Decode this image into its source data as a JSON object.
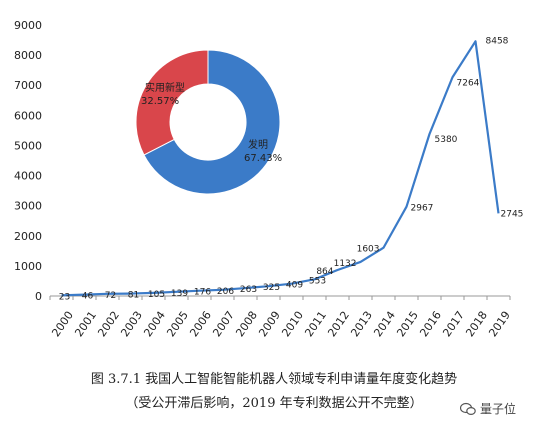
{
  "chart_data": {
    "type": "line",
    "categories": [
      "2000",
      "2001",
      "2002",
      "2003",
      "2004",
      "2005",
      "2006",
      "2007",
      "2008",
      "2009",
      "2010",
      "2011",
      "2012",
      "2013",
      "2014",
      "2015",
      "2016",
      "2017",
      "2018",
      "2019"
    ],
    "values": [
      23,
      46,
      72,
      81,
      105,
      139,
      176,
      206,
      263,
      325,
      409,
      553,
      864,
      1132,
      1603,
      2967,
      5380,
      7264,
      8458,
      2745
    ],
    "ylim": [
      0,
      9000
    ],
    "yticks": [
      0,
      1000,
      2000,
      3000,
      4000,
      5000,
      6000,
      7000,
      8000,
      9000
    ],
    "line_color": "#3b7bc8",
    "grid": false,
    "inset_pie": {
      "type": "pie",
      "slices": [
        {
          "name": "发明",
          "percent_label": "67.43%",
          "value": 67.43,
          "color": "#3b7bc8"
        },
        {
          "name": "实用新型",
          "percent_label": "32.57%",
          "value": 32.57,
          "color": "#d9464b"
        }
      ]
    }
  },
  "caption": {
    "line1": "图 3.7.1 我国人工智能智能机器人领域专利申请量年度变化趋势",
    "line2": "（受公开滞后影响，2019 年专利数据公开不完整）"
  },
  "watermark": {
    "text": "量子位"
  }
}
